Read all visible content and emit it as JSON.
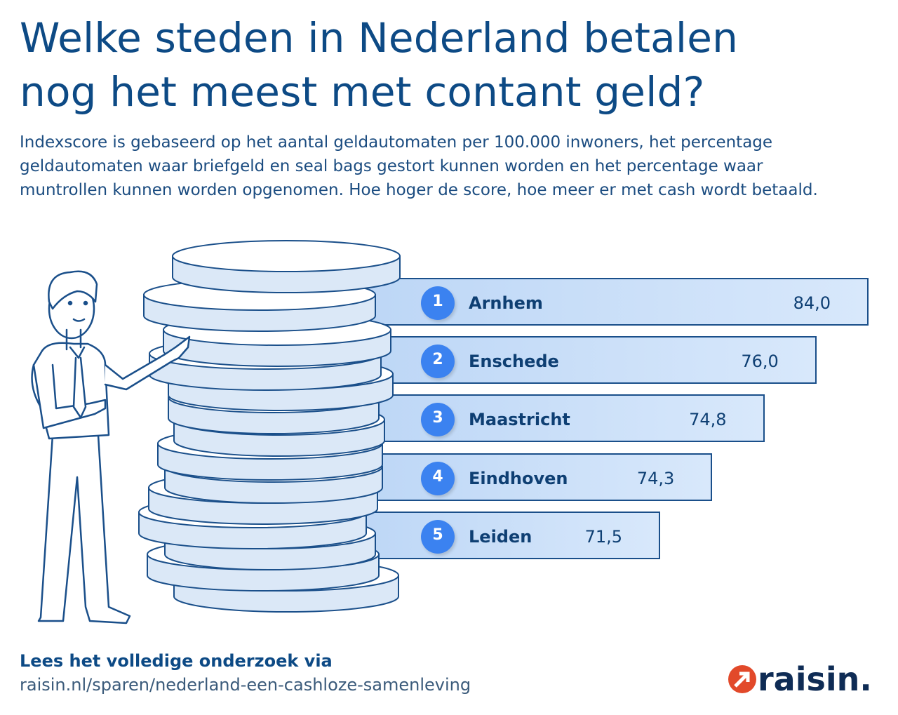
{
  "header": {
    "title_line1": "Welke steden in Nederland betalen",
    "title_line2": "nog het meest met contant geld?",
    "subtitle": "Indexscore is gebaseerd op het aantal geldautomaten per 100.000 inwoners, het percentage geldautomaten waar briefgeld en seal bags gestort kunnen worden en het percentage waar muntrollen kunnen worden opgenomen. Hoe hoger de score, hoe meer er met cash wordt betaald."
  },
  "chart_data": {
    "type": "bar",
    "orientation": "horizontal",
    "categories": [
      "Arnhem",
      "Enschede",
      "Maastricht",
      "Eindhoven",
      "Leiden"
    ],
    "ranks": [
      "1",
      "2",
      "3",
      "4",
      "5"
    ],
    "values": [
      84.0,
      76.0,
      74.8,
      74.3,
      71.5
    ],
    "value_labels": [
      "84,0",
      "76,0",
      "74,8",
      "74,3",
      "71,5"
    ],
    "colors": {
      "bar_fill": "#cfe2fa",
      "bar_border": "#1a4f8a",
      "rank_badge": "#3b82f0",
      "text": "#0e3f73"
    }
  },
  "footer": {
    "lead": "Lees het volledige onderzoek via",
    "url": "raisin.nl/sparen/nederland-een-cashloze-samenleving"
  },
  "logo": {
    "text": "raisin.",
    "accent": "#e2492a",
    "color": "#0f2c55"
  }
}
